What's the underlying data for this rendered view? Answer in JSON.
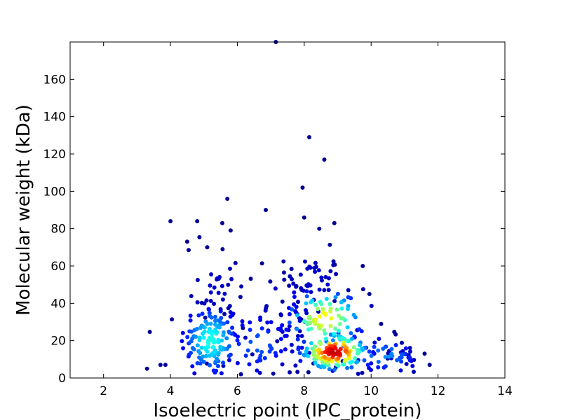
{
  "chart_data": {
    "type": "scatter",
    "title": "",
    "xlabel": "Isoelectric point (IPC_protein)",
    "ylabel": "Molecular weight (kDa)",
    "xlim": [
      1,
      14
    ],
    "ylim": [
      0,
      180
    ],
    "xticks": [
      2,
      4,
      6,
      8,
      10,
      12,
      14
    ],
    "yticks": [
      0,
      20,
      40,
      60,
      80,
      100,
      120,
      140,
      160
    ],
    "grid": false,
    "legend": "none",
    "colormap": "jet (point density)",
    "outliers": [
      {
        "x": 7.15,
        "y": 180
      },
      {
        "x": 8.15,
        "y": 129
      },
      {
        "x": 8.6,
        "y": 117
      },
      {
        "x": 7.95,
        "y": 102
      },
      {
        "x": 5.7,
        "y": 96
      },
      {
        "x": 6.85,
        "y": 90
      },
      {
        "x": 4.0,
        "y": 84
      },
      {
        "x": 4.8,
        "y": 84
      },
      {
        "x": 5.55,
        "y": 83
      },
      {
        "x": 8.9,
        "y": 83
      },
      {
        "x": 8.0,
        "y": 86
      },
      {
        "x": 5.8,
        "y": 79
      },
      {
        "x": 8.45,
        "y": 80
      },
      {
        "x": 4.5,
        "y": 73
      },
      {
        "x": 5.1,
        "y": 70
      },
      {
        "x": 9.75,
        "y": 60
      },
      {
        "x": 9.95,
        "y": 45
      },
      {
        "x": 10.3,
        "y": 29
      },
      {
        "x": 3.3,
        "y": 5
      },
      {
        "x": 3.7,
        "y": 7
      },
      {
        "x": 3.85,
        "y": 7
      },
      {
        "x": 11.75,
        "y": 7
      },
      {
        "x": 11.6,
        "y": 13
      }
    ],
    "clusters": [
      {
        "cx": 5.2,
        "cy": 20,
        "sx": 0.45,
        "sy": 10,
        "n": 140,
        "density": 0.38
      },
      {
        "cx": 8.9,
        "cy": 14,
        "sx": 0.5,
        "sy": 5,
        "n": 160,
        "density": 0.92
      },
      {
        "cx": 8.6,
        "cy": 32,
        "sx": 0.6,
        "sy": 8,
        "n": 90,
        "density": 0.62
      },
      {
        "cx": 6.6,
        "cy": 18,
        "sx": 0.6,
        "sy": 9,
        "n": 60,
        "density": 0.2
      },
      {
        "cx": 8.3,
        "cy": 52,
        "sx": 0.55,
        "sy": 9,
        "n": 45,
        "density": 0.06
      },
      {
        "cx": 5.3,
        "cy": 48,
        "sx": 0.55,
        "sy": 10,
        "n": 35,
        "density": 0.06
      },
      {
        "cx": 10.4,
        "cy": 12,
        "sx": 0.6,
        "sy": 5,
        "n": 35,
        "density": 0.25
      },
      {
        "cx": 11.0,
        "cy": 12,
        "sx": 0.4,
        "sy": 4,
        "n": 20,
        "density": 0.06
      },
      {
        "cx": 7.5,
        "cy": 38,
        "sx": 0.5,
        "sy": 10,
        "n": 25,
        "density": 0.1
      }
    ]
  }
}
